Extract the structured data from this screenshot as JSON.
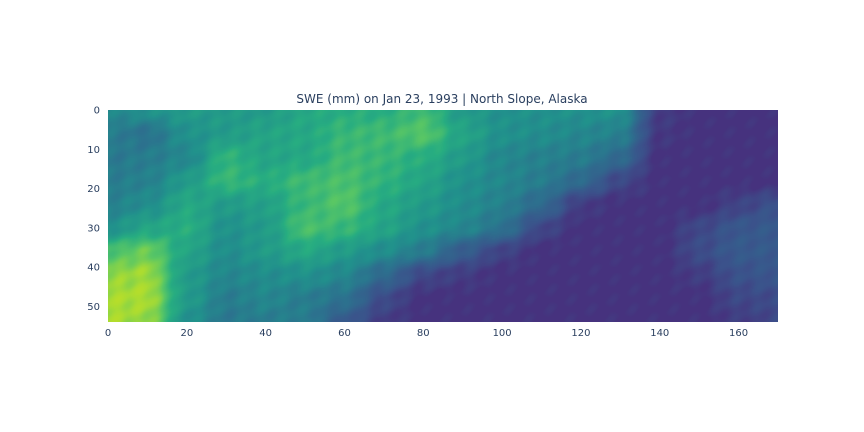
{
  "chart_data": {
    "type": "heatmap",
    "title": "SWE (mm) on Jan 23, 1993 | North Slope, Alaska",
    "xlabel": "",
    "ylabel": "",
    "xlim": [
      0,
      170
    ],
    "ylim": [
      54,
      0
    ],
    "x_ticks": [
      0,
      20,
      40,
      60,
      80,
      100,
      120,
      140,
      160
    ],
    "y_ticks": [
      0,
      10,
      20,
      30,
      40,
      50
    ],
    "grid": false,
    "legend": "none",
    "colorscale": "viridis",
    "colors": {
      "low": "#46327e",
      "mid": "#21918c",
      "high": "#c8e020",
      "text": "#2a3f5f"
    },
    "rows_y": [
      0,
      6,
      12,
      18,
      24,
      30,
      36,
      42,
      48,
      54
    ],
    "cols_x": [
      0,
      10,
      20,
      30,
      40,
      50,
      60,
      70,
      80,
      90,
      100,
      110,
      120,
      130,
      140,
      150,
      160,
      170
    ],
    "z": [
      [
        0.45,
        0.5,
        0.55,
        0.55,
        0.55,
        0.62,
        0.65,
        0.65,
        0.72,
        0.55,
        0.5,
        0.5,
        0.5,
        0.5,
        0.05,
        0.0,
        0.0,
        0.0
      ],
      [
        0.4,
        0.35,
        0.5,
        0.55,
        0.6,
        0.62,
        0.7,
        0.72,
        0.78,
        0.6,
        0.5,
        0.48,
        0.45,
        0.42,
        0.03,
        0.0,
        0.0,
        0.0
      ],
      [
        0.38,
        0.4,
        0.45,
        0.68,
        0.6,
        0.62,
        0.72,
        0.7,
        0.65,
        0.55,
        0.45,
        0.42,
        0.4,
        0.3,
        0.0,
        0.0,
        0.0,
        0.0
      ],
      [
        0.4,
        0.42,
        0.55,
        0.7,
        0.65,
        0.72,
        0.75,
        0.68,
        0.6,
        0.5,
        0.45,
        0.4,
        0.3,
        0.1,
        0.0,
        0.0,
        0.0,
        0.0
      ],
      [
        0.42,
        0.48,
        0.62,
        0.55,
        0.58,
        0.7,
        0.78,
        0.62,
        0.55,
        0.48,
        0.42,
        0.3,
        0.05,
        0.0,
        0.0,
        0.0,
        0.08,
        0.15
      ],
      [
        0.5,
        0.6,
        0.65,
        0.5,
        0.55,
        0.75,
        0.7,
        0.6,
        0.5,
        0.45,
        0.35,
        0.1,
        0.0,
        0.0,
        0.0,
        0.1,
        0.18,
        0.2
      ],
      [
        0.75,
        0.82,
        0.6,
        0.48,
        0.55,
        0.62,
        0.55,
        0.48,
        0.4,
        0.22,
        0.08,
        0.0,
        0.0,
        0.0,
        0.0,
        0.12,
        0.2,
        0.2
      ],
      [
        0.88,
        0.9,
        0.55,
        0.45,
        0.48,
        0.5,
        0.45,
        0.3,
        0.1,
        0.05,
        0.0,
        0.0,
        0.0,
        0.0,
        0.0,
        0.05,
        0.15,
        0.18
      ],
      [
        0.92,
        0.92,
        0.55,
        0.4,
        0.45,
        0.4,
        0.35,
        0.12,
        0.0,
        0.0,
        0.0,
        0.0,
        0.0,
        0.0,
        0.0,
        0.0,
        0.1,
        0.12
      ],
      [
        0.92,
        0.88,
        0.5,
        0.38,
        0.4,
        0.4,
        0.2,
        0.05,
        0.0,
        0.0,
        0.0,
        0.0,
        0.0,
        0.0,
        0.0,
        0.0,
        0.05,
        0.1
      ]
    ]
  }
}
